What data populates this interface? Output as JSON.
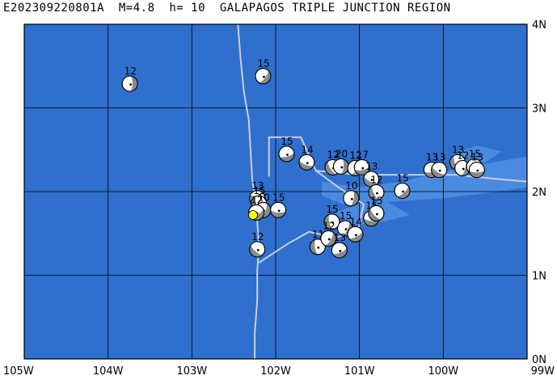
{
  "title": "E202309220801A  M=4.8  h= 10  GALAPAGOS TRIPLE JUNCTION REGION",
  "map": {
    "lon_range": [
      -105,
      -99
    ],
    "lat_range": [
      0,
      4
    ],
    "lon_ticks": [
      {
        "value": -105,
        "label": "105W"
      },
      {
        "value": -104,
        "label": "104W"
      },
      {
        "value": -103,
        "label": "103W"
      },
      {
        "value": -102,
        "label": "102W"
      },
      {
        "value": -101,
        "label": "101W"
      },
      {
        "value": -100,
        "label": "100W"
      },
      {
        "value": -99,
        "label": "99W"
      }
    ],
    "lat_ticks": [
      {
        "value": 0,
        "label": "0N"
      },
      {
        "value": 1,
        "label": "1N"
      },
      {
        "value": 2,
        "label": "2N"
      },
      {
        "value": 3,
        "label": "3N"
      },
      {
        "value": 4,
        "label": "4N"
      }
    ],
    "grid": true,
    "colors": {
      "ocean": "#2f6fce",
      "shallow": "#4f8fe4",
      "grid": "#000000",
      "plate_boundary": "#c8d0e0",
      "beachball_dark": "#8a8a8a",
      "beachball_light": "#ffffff",
      "event_marker": "#ffff00"
    },
    "plate_boundary": [
      [
        [
          -102.45,
          4.0
        ],
        [
          -102.42,
          3.6
        ],
        [
          -102.38,
          3.2
        ],
        [
          -102.32,
          2.85
        ],
        [
          -102.3,
          2.5
        ],
        [
          -102.28,
          2.15
        ],
        [
          -102.25,
          1.95
        ],
        [
          -102.22,
          1.65
        ],
        [
          -102.2,
          1.35
        ],
        [
          -102.22,
          1.05
        ],
        [
          -102.22,
          0.7
        ],
        [
          -102.25,
          0.3
        ],
        [
          -102.25,
          0.0
        ]
      ],
      [
        [
          -102.08,
          2.18
        ],
        [
          -102.08,
          2.65
        ],
        [
          -101.7,
          2.65
        ],
        [
          -101.52,
          2.25
        ],
        [
          -101.25,
          2.05
        ],
        [
          -100.95,
          1.85
        ],
        [
          -101.02,
          1.52
        ],
        [
          -101.3,
          1.45
        ],
        [
          -101.6,
          1.52
        ],
        [
          -101.85,
          1.38
        ],
        [
          -102.2,
          1.15
        ]
      ],
      [
        [
          -101.52,
          2.25
        ],
        [
          -101.0,
          2.2
        ],
        [
          -100.5,
          2.2
        ],
        [
          -99.85,
          2.2
        ],
        [
          -99.35,
          2.15
        ],
        [
          -99.0,
          2.12
        ]
      ]
    ],
    "shallow_regions": [
      [
        [
          -101.45,
          2.12
        ],
        [
          -101.0,
          2.05
        ],
        [
          -100.5,
          2.12
        ],
        [
          -99.8,
          2.28
        ],
        [
          -99.4,
          2.35
        ],
        [
          -99.0,
          2.42
        ],
        [
          -99.0,
          2.05
        ],
        [
          -99.5,
          1.98
        ],
        [
          -100.0,
          1.92
        ],
        [
          -100.6,
          1.88
        ],
        [
          -101.2,
          1.85
        ],
        [
          -101.45,
          1.95
        ]
      ],
      [
        [
          -101.3,
          1.75
        ],
        [
          -101.0,
          1.85
        ],
        [
          -100.7,
          1.9
        ],
        [
          -100.4,
          1.72
        ],
        [
          -100.8,
          1.62
        ],
        [
          -101.1,
          1.6
        ]
      ],
      [
        [
          -99.9,
          2.45
        ],
        [
          -99.6,
          2.55
        ],
        [
          -99.3,
          2.48
        ],
        [
          -99.5,
          2.35
        ],
        [
          -99.8,
          2.35
        ]
      ]
    ],
    "events": [
      {
        "lon": -103.74,
        "lat": 3.29,
        "mag": "12"
      },
      {
        "lon": -102.15,
        "lat": 3.38,
        "mag": "15"
      },
      {
        "lon": -101.87,
        "lat": 2.45,
        "mag": "15"
      },
      {
        "lon": -101.63,
        "lat": 2.35,
        "mag": "14"
      },
      {
        "lon": -101.32,
        "lat": 2.29,
        "mag": "12"
      },
      {
        "lon": -101.22,
        "lat": 2.3,
        "mag": "20"
      },
      {
        "lon": -101.05,
        "lat": 2.28,
        "mag": "12"
      },
      {
        "lon": -100.97,
        "lat": 2.29,
        "mag": "17"
      },
      {
        "lon": -100.86,
        "lat": 2.15,
        "mag": "13"
      },
      {
        "lon": -100.8,
        "lat": 1.99,
        "mag": "12"
      },
      {
        "lon": -101.1,
        "lat": 1.92,
        "mag": "10"
      },
      {
        "lon": -100.49,
        "lat": 2.01,
        "mag": "15"
      },
      {
        "lon": -100.14,
        "lat": 2.26,
        "mag": "13"
      },
      {
        "lon": -100.05,
        "lat": 2.26,
        "mag": "13"
      },
      {
        "lon": -99.83,
        "lat": 2.35,
        "mag": "13"
      },
      {
        "lon": -99.77,
        "lat": 2.28,
        "mag": "12"
      },
      {
        "lon": -99.63,
        "lat": 2.3,
        "mag": "15"
      },
      {
        "lon": -99.6,
        "lat": 2.26,
        "mag": "13"
      },
      {
        "lon": -102.22,
        "lat": 1.92,
        "mag": "13"
      },
      {
        "lon": -102.2,
        "lat": 1.86,
        "mag": "15"
      },
      {
        "lon": -102.15,
        "lat": 1.78,
        "mag": "10"
      },
      {
        "lon": -102.23,
        "lat": 1.75,
        "mag": "12"
      },
      {
        "lon": -101.97,
        "lat": 1.78,
        "mag": "15"
      },
      {
        "lon": -102.22,
        "lat": 1.31,
        "mag": "12"
      },
      {
        "lon": -101.33,
        "lat": 1.64,
        "mag": "15"
      },
      {
        "lon": -101.17,
        "lat": 1.56,
        "mag": "15"
      },
      {
        "lon": -101.05,
        "lat": 1.49,
        "mag": "14"
      },
      {
        "lon": -100.86,
        "lat": 1.68,
        "mag": "15"
      },
      {
        "lon": -100.8,
        "lat": 1.74,
        "mag": "15"
      },
      {
        "lon": -101.5,
        "lat": 1.34,
        "mag": "11"
      },
      {
        "lon": -101.37,
        "lat": 1.44,
        "mag": "12"
      },
      {
        "lon": -101.24,
        "lat": 1.3,
        "mag": "13"
      }
    ],
    "current_event": {
      "lon": -102.27,
      "lat": 1.72
    }
  }
}
